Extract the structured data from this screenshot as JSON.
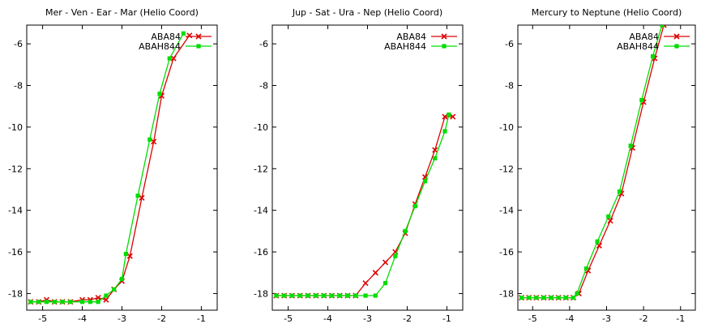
{
  "chart_data": [
    {
      "type": "line",
      "title": "Mer - Ven - Ear - Mar (Helio Coord)",
      "xlim": [
        -5.4,
        -0.6
      ],
      "ylim": [
        -18.8,
        -5.1
      ],
      "xticks": [
        -5,
        -4,
        -3,
        -2,
        -1
      ],
      "xtick_labels": [
        "-5",
        "-4",
        "-3",
        "-2",
        "-1"
      ],
      "yticks": [
        -18,
        -16,
        -14,
        -12,
        -10,
        -8,
        -6
      ],
      "ytick_labels": [
        "-18",
        "-16",
        "-14",
        "-12",
        "-10",
        "-8",
        "-6"
      ],
      "grid": false,
      "legend": "top-right",
      "series": [
        {
          "name": "ABA84",
          "color": "#dd0000",
          "marker": "x",
          "x": [
            -5.3,
            -5.1,
            -4.9,
            -4.7,
            -4.5,
            -4.3,
            -4.0,
            -3.8,
            -3.6,
            -3.4,
            -3.2,
            -3.0,
            -2.8,
            -2.5,
            -2.2,
            -2.0,
            -1.7,
            -1.3
          ],
          "y": [
            -18.4,
            -18.4,
            -18.3,
            -18.4,
            -18.4,
            -18.4,
            -18.3,
            -18.3,
            -18.2,
            -18.3,
            -17.8,
            -17.4,
            -16.2,
            -13.4,
            -10.7,
            -8.5,
            -6.7,
            -5.6
          ]
        },
        {
          "name": "ABAH844",
          "color": "#00dd00",
          "marker": "square",
          "x": [
            -5.3,
            -5.1,
            -4.9,
            -4.7,
            -4.5,
            -4.3,
            -4.0,
            -3.8,
            -3.6,
            -3.4,
            -3.2,
            -3.0,
            -2.9,
            -2.6,
            -2.3,
            -2.05,
            -1.8,
            -1.45
          ],
          "y": [
            -18.4,
            -18.4,
            -18.4,
            -18.4,
            -18.4,
            -18.4,
            -18.4,
            -18.4,
            -18.4,
            -18.1,
            -17.8,
            -17.3,
            -16.1,
            -13.3,
            -10.6,
            -8.4,
            -6.7,
            -5.5
          ]
        }
      ]
    },
    {
      "type": "line",
      "title": "Jup - Sat - Ura - Nep (Helio Coord)",
      "xlim": [
        -5.4,
        -0.6
      ],
      "ylim": [
        -18.8,
        -5.1
      ],
      "xticks": [
        -5,
        -4,
        -3,
        -2,
        -1
      ],
      "xtick_labels": [
        "-5",
        "-4",
        "-3",
        "-2",
        "-1"
      ],
      "yticks": [
        -18,
        -16,
        -14,
        -12,
        -10,
        -8,
        -6
      ],
      "ytick_labels": [
        "-18",
        "-16",
        "-14",
        "-12",
        "-10",
        "-8",
        "-6"
      ],
      "grid": false,
      "legend": "top-right",
      "series": [
        {
          "name": "ABA84",
          "color": "#dd0000",
          "marker": "x",
          "x": [
            -5.3,
            -5.1,
            -4.9,
            -4.7,
            -4.5,
            -4.3,
            -4.1,
            -3.9,
            -3.7,
            -3.5,
            -3.3,
            -3.05,
            -2.8,
            -2.55,
            -2.3,
            -2.05,
            -1.8,
            -1.55,
            -1.3,
            -1.05,
            -0.85
          ],
          "y": [
            -18.1,
            -18.1,
            -18.1,
            -18.1,
            -18.1,
            -18.1,
            -18.1,
            -18.1,
            -18.1,
            -18.1,
            -18.1,
            -17.5,
            -17.0,
            -16.5,
            -16.0,
            -15.1,
            -13.7,
            -12.4,
            -11.1,
            -9.5,
            -9.5
          ]
        },
        {
          "name": "ABAH844",
          "color": "#00dd00",
          "marker": "square",
          "x": [
            -5.3,
            -5.1,
            -4.9,
            -4.7,
            -4.5,
            -4.3,
            -4.1,
            -3.9,
            -3.7,
            -3.5,
            -3.3,
            -3.05,
            -2.8,
            -2.55,
            -2.3,
            -2.05,
            -1.8,
            -1.55,
            -1.3,
            -1.05,
            -0.95
          ],
          "y": [
            -18.1,
            -18.1,
            -18.1,
            -18.1,
            -18.1,
            -18.1,
            -18.1,
            -18.1,
            -18.1,
            -18.1,
            -18.1,
            -18.1,
            -18.1,
            -17.5,
            -16.2,
            -15.0,
            -13.8,
            -12.6,
            -11.5,
            -10.2,
            -9.4
          ]
        }
      ]
    },
    {
      "type": "line",
      "title": "Mercury to Neptune (Helio Coord)",
      "xlim": [
        -5.4,
        -0.6
      ],
      "ylim": [
        -18.8,
        -5.1
      ],
      "xticks": [
        -5,
        -4,
        -3,
        -2,
        -1
      ],
      "xtick_labels": [
        "-5",
        "-4",
        "-3",
        "-2",
        "-1"
      ],
      "yticks": [
        -18,
        -16,
        -14,
        -12,
        -10,
        -8,
        -6
      ],
      "ytick_labels": [
        "-18",
        "-16",
        "-14",
        "-12",
        "-10",
        "-8",
        "-6"
      ],
      "grid": false,
      "legend": "top-right",
      "series": [
        {
          "name": "ABA84",
          "color": "#dd0000",
          "marker": "x",
          "x": [
            -5.3,
            -5.1,
            -4.9,
            -4.7,
            -4.5,
            -4.3,
            -4.1,
            -3.9,
            -3.75,
            -3.5,
            -3.2,
            -2.9,
            -2.6,
            -2.3,
            -2.0,
            -1.7,
            -1.45
          ],
          "y": [
            -18.2,
            -18.2,
            -18.2,
            -18.2,
            -18.2,
            -18.2,
            -18.2,
            -18.2,
            -18.0,
            -16.9,
            -15.7,
            -14.5,
            -13.2,
            -11.0,
            -8.8,
            -6.7,
            -5.1
          ]
        },
        {
          "name": "ABAH844",
          "color": "#00dd00",
          "marker": "square",
          "x": [
            -5.3,
            -5.1,
            -4.9,
            -4.7,
            -4.5,
            -4.3,
            -4.1,
            -3.9,
            -3.8,
            -3.55,
            -3.25,
            -2.95,
            -2.65,
            -2.35,
            -2.05,
            -1.75,
            -1.5
          ],
          "y": [
            -18.2,
            -18.2,
            -18.2,
            -18.2,
            -18.2,
            -18.2,
            -18.2,
            -18.2,
            -18.0,
            -16.8,
            -15.5,
            -14.3,
            -13.1,
            -10.9,
            -8.7,
            -6.6,
            -5.1
          ]
        }
      ]
    }
  ]
}
